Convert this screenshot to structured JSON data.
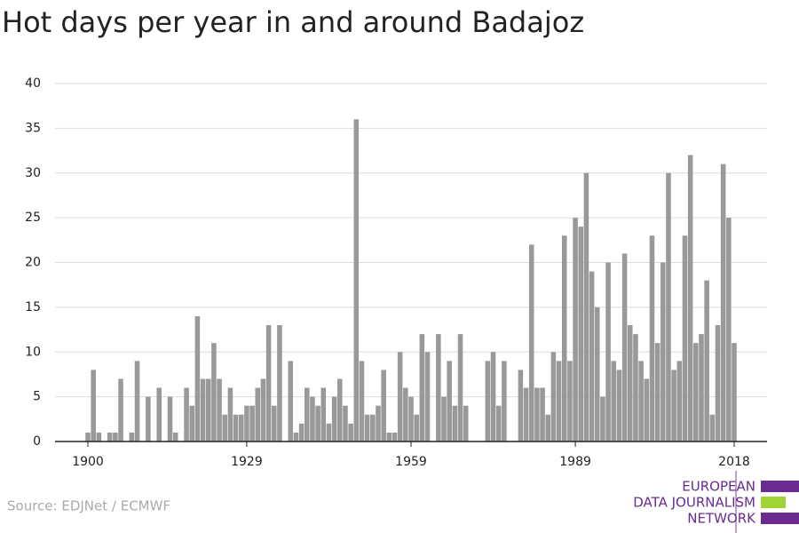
{
  "chart_data": {
    "type": "bar",
    "title": "Hot days per year in and around Badajoz",
    "source": "Source: EDJNet / ECMWF",
    "logo": [
      "EUROPEAN",
      "DATA JOURNALISM",
      "NETWORK"
    ],
    "color": "#999999",
    "x": [
      1900,
      1901,
      1902,
      1903,
      1904,
      1905,
      1906,
      1907,
      1908,
      1909,
      1910,
      1911,
      1912,
      1913,
      1914,
      1915,
      1916,
      1917,
      1918,
      1919,
      1920,
      1921,
      1922,
      1923,
      1924,
      1925,
      1926,
      1927,
      1928,
      1929,
      1930,
      1931,
      1932,
      1933,
      1934,
      1935,
      1936,
      1937,
      1938,
      1939,
      1940,
      1941,
      1942,
      1943,
      1944,
      1945,
      1946,
      1947,
      1948,
      1949,
      1950,
      1951,
      1952,
      1953,
      1954,
      1955,
      1956,
      1957,
      1958,
      1959,
      1960,
      1961,
      1962,
      1963,
      1964,
      1965,
      1966,
      1967,
      1968,
      1969,
      1970,
      1971,
      1972,
      1973,
      1974,
      1975,
      1976,
      1977,
      1978,
      1979,
      1980,
      1981,
      1982,
      1983,
      1984,
      1985,
      1986,
      1987,
      1988,
      1989,
      1990,
      1991,
      1992,
      1993,
      1994,
      1995,
      1996,
      1997,
      1998,
      1999,
      2000,
      2001,
      2002,
      2003,
      2004,
      2005,
      2006,
      2007,
      2008,
      2009,
      2010,
      2011,
      2012,
      2013,
      2014,
      2015,
      2016,
      2017,
      2018
    ],
    "values": [
      1,
      8,
      1,
      0,
      1,
      1,
      7,
      0,
      1,
      9,
      0,
      5,
      0,
      6,
      0,
      5,
      1,
      0,
      6,
      4,
      14,
      7,
      7,
      11,
      7,
      3,
      6,
      3,
      3,
      4,
      4,
      6,
      7,
      13,
      4,
      13,
      0,
      9,
      1,
      2,
      6,
      5,
      4,
      6,
      2,
      5,
      7,
      4,
      2,
      36,
      9,
      3,
      3,
      4,
      8,
      1,
      1,
      10,
      6,
      5,
      3,
      12,
      10,
      0,
      12,
      5,
      9,
      4,
      12,
      4,
      0,
      0,
      0,
      9,
      10,
      4,
      9,
      0,
      0,
      8,
      6,
      22,
      6,
      6,
      3,
      10,
      9,
      23,
      9,
      25,
      24,
      30,
      19,
      15,
      5,
      20,
      9,
      8,
      21,
      13,
      12,
      9,
      7,
      23,
      11,
      20,
      30,
      8,
      9,
      23,
      32,
      11,
      12,
      18,
      3,
      13,
      31,
      25,
      11
    ],
    "xlim": [
      1894,
      2024
    ],
    "xticks": [
      1900,
      1929,
      1959,
      1989,
      2018
    ],
    "ylim": [
      0,
      40
    ],
    "yticks": [
      0,
      5,
      10,
      15,
      20,
      25,
      30,
      35,
      40
    ],
    "grid": true
  }
}
